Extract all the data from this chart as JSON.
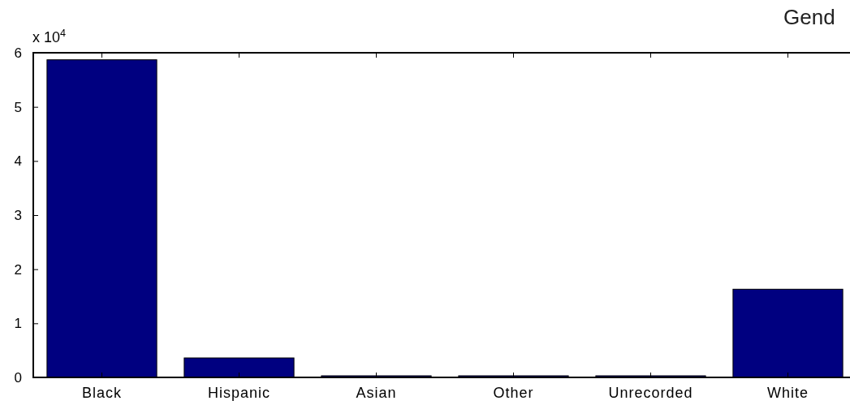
{
  "chart_data": {
    "type": "bar",
    "title": "Gend",
    "categories": [
      "Black",
      "Hispanic",
      "Asian",
      "Other",
      "Unrecorded",
      "White"
    ],
    "values": [
      5.87,
      0.36,
      0.03,
      0.03,
      0.03,
      1.63
    ],
    "color": "#000080",
    "ylim": [
      0,
      6
    ],
    "yticks": [
      0,
      1,
      2,
      3,
      4,
      5,
      6
    ],
    "grid": false,
    "annotations": [
      "x 10$^{4}$"
    ]
  }
}
